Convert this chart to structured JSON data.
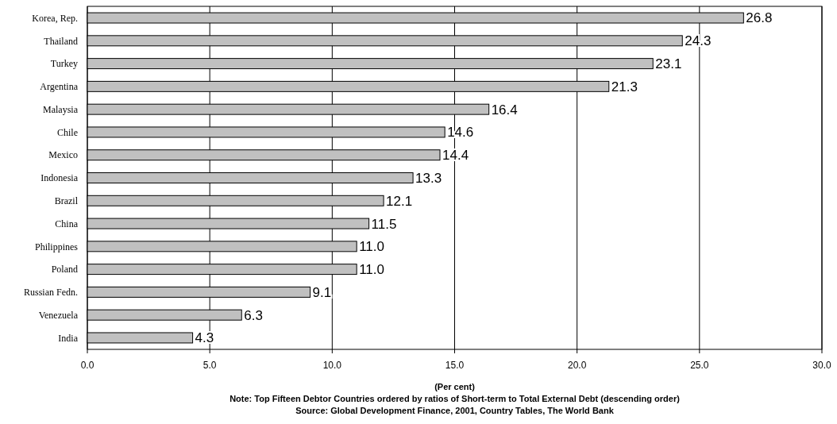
{
  "chart_data": {
    "type": "bar",
    "orientation": "horizontal",
    "categories": [
      "Korea, Rep.",
      "Thailand",
      "Turkey",
      "Argentina",
      "Malaysia",
      "Chile",
      "Mexico",
      "Indonesia",
      "Brazil",
      "China",
      "Philippines",
      "Poland",
      "Russian Fedn.",
      "Venezuela",
      "India"
    ],
    "values": [
      26.8,
      24.3,
      23.1,
      21.3,
      16.4,
      14.6,
      14.4,
      13.3,
      12.1,
      11.5,
      11.0,
      11.0,
      9.1,
      6.3,
      4.3
    ],
    "value_labels": [
      "26.8",
      "24.3",
      "23.1",
      "21.3",
      "16.4",
      "14.6",
      "14.4",
      "13.3",
      "12.1",
      "11.5",
      "11.0",
      "11.0",
      "9.1",
      "6.3",
      "4.3"
    ],
    "color": "#c0c0c0",
    "xlim": [
      0,
      30
    ],
    "xticks": [
      {
        "value": 0,
        "label": "0.0"
      },
      {
        "value": 5,
        "label": "5.0"
      },
      {
        "value": 10,
        "label": "10.0"
      },
      {
        "value": 15,
        "label": "15.0"
      },
      {
        "value": 20,
        "label": "20.0"
      },
      {
        "value": 25,
        "label": "25.0"
      },
      {
        "value": 30,
        "label": "30.0"
      }
    ],
    "grid": "x",
    "xlabel": "(Per cent)",
    "annotations": [
      "Note: Top Fifteen Debtor Countries ordered by ratios of Short-term to Total External Debt (descending order)",
      "Source: Global Development Finance, 2001, Country Tables, The World Bank"
    ]
  }
}
